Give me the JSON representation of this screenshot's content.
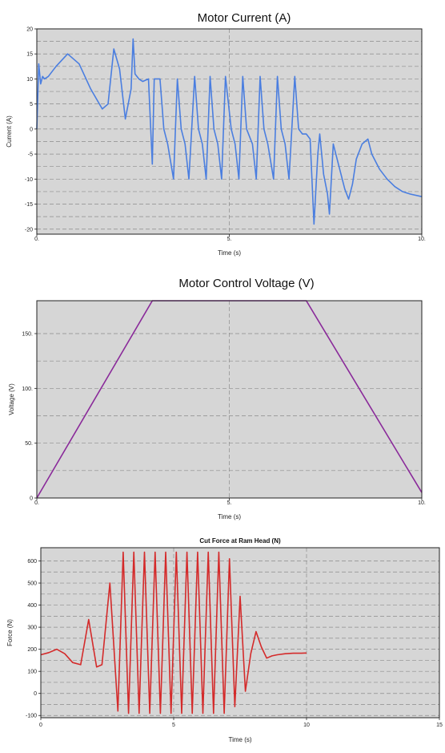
{
  "chart_data": [
    {
      "type": "line",
      "title": "Motor Current (A)",
      "xlabel": "Time (s)",
      "ylabel": "Current (A)",
      "xlim": [
        0,
        10
      ],
      "ylim": [
        -21,
        20
      ],
      "xticks": [
        0,
        5,
        10
      ],
      "xtick_labels": [
        "0.",
        "5.",
        "10."
      ],
      "yticks": [
        20,
        15,
        10,
        5,
        0,
        -5,
        -10,
        -15,
        -20
      ],
      "ytick_labels": [
        "20",
        "15",
        "10",
        "5",
        "0",
        "-5",
        "-10",
        "-15",
        "-20"
      ],
      "grid": true,
      "color": "#4a7ee0",
      "series": [
        {
          "x": [
            0.0,
            0.05,
            0.1,
            0.15,
            0.2,
            0.3,
            0.5,
            0.8,
            1.1,
            1.4,
            1.7,
            1.85,
            2.0,
            2.15,
            2.3,
            2.45,
            2.5,
            2.55,
            2.65,
            2.75,
            2.9,
            3.0,
            3.05,
            3.1,
            3.2,
            3.3,
            3.4,
            3.55,
            3.65,
            3.75,
            3.85,
            3.95,
            4.1,
            4.2,
            4.3,
            4.4,
            4.5,
            4.6,
            4.7,
            4.8,
            4.9,
            5.05,
            5.15,
            5.25,
            5.35,
            5.45,
            5.6,
            5.7,
            5.8,
            5.9,
            6.0,
            6.15,
            6.25,
            6.35,
            6.45,
            6.55,
            6.7,
            6.8,
            6.9,
            7.0,
            7.1,
            7.2,
            7.25,
            7.3,
            7.35,
            7.45,
            7.55,
            7.6,
            7.7,
            7.8,
            7.9,
            8.0,
            8.1,
            8.2,
            8.3,
            8.45,
            8.6,
            8.7,
            8.9,
            9.1,
            9.3,
            9.5,
            9.7,
            10.0
          ],
          "y": [
            0,
            13,
            9,
            10.5,
            10,
            10.5,
            12.5,
            15,
            13,
            8,
            4,
            5,
            16,
            12,
            2,
            8,
            18,
            11,
            10,
            9.5,
            10,
            -7,
            10,
            10,
            10,
            0,
            -3,
            -10,
            10,
            0,
            -3,
            -10,
            10.5,
            0,
            -3,
            -10,
            10.5,
            0,
            -3,
            -10,
            10.5,
            0,
            -3,
            -10,
            10.5,
            0,
            -3,
            -10,
            10.5,
            0,
            -3,
            -10,
            10.5,
            0,
            -3,
            -10,
            10.5,
            0,
            -1,
            -1,
            -2,
            -19,
            -12,
            -5,
            -1,
            -9,
            -13,
            -17,
            -3,
            -6,
            -9,
            -12,
            -14,
            -11,
            -6,
            -3,
            -2,
            -5,
            -8,
            -10,
            -11.5,
            -12.5,
            -13,
            -13.5
          ]
        }
      ]
    },
    {
      "type": "line",
      "title": "Motor Control Voltage (V)",
      "xlabel": "Time (s)",
      "ylabel": "Voltage (V)",
      "xlim": [
        0,
        10
      ],
      "ylim": [
        0,
        180
      ],
      "xticks": [
        0,
        5,
        10
      ],
      "xtick_labels": [
        "0.",
        "5.",
        "10."
      ],
      "yticks": [
        150,
        100,
        50,
        0
      ],
      "ytick_labels": [
        "150.",
        "100.",
        "50.",
        "0"
      ],
      "grid": true,
      "color": "#8a2a9a",
      "series": [
        {
          "x": [
            0,
            3.0,
            7.0,
            10.0
          ],
          "y": [
            0,
            180,
            180,
            5
          ]
        }
      ]
    },
    {
      "type": "line",
      "title": "Cut Force at Ram Head (N)",
      "xlabel": "Time (s)",
      "ylabel": "Force (N)",
      "xlim": [
        0,
        15
      ],
      "ylim": [
        -110,
        660
      ],
      "xticks": [
        0,
        5,
        10,
        15
      ],
      "xtick_labels": [
        "0",
        "5",
        "10",
        "15"
      ],
      "yticks": [
        600,
        500,
        400,
        300,
        200,
        100,
        0,
        -100
      ],
      "ytick_labels": [
        "600",
        "500",
        "400",
        "300",
        "200",
        "100",
        "0",
        "-100"
      ],
      "grid": true,
      "color": "#d42a2a",
      "series": [
        {
          "x": [
            0.0,
            0.3,
            0.6,
            0.9,
            1.2,
            1.5,
            1.8,
            2.1,
            2.3,
            2.6,
            2.9,
            3.1,
            3.3,
            3.5,
            3.7,
            3.9,
            4.1,
            4.3,
            4.5,
            4.7,
            4.9,
            5.1,
            5.3,
            5.5,
            5.7,
            5.9,
            6.1,
            6.3,
            6.5,
            6.7,
            6.9,
            7.1,
            7.3,
            7.5,
            7.7,
            7.9,
            8.1,
            8.3,
            8.5,
            8.7,
            8.9,
            9.2,
            9.5,
            9.8,
            10.0
          ],
          "y": [
            175,
            185,
            200,
            180,
            140,
            130,
            335,
            120,
            130,
            500,
            -80,
            640,
            -90,
            640,
            -90,
            640,
            -90,
            640,
            -90,
            640,
            -90,
            640,
            -90,
            640,
            -90,
            640,
            -90,
            640,
            -90,
            640,
            -90,
            610,
            -60,
            440,
            10,
            180,
            280,
            210,
            160,
            170,
            175,
            180,
            182,
            182,
            183
          ]
        }
      ]
    }
  ]
}
